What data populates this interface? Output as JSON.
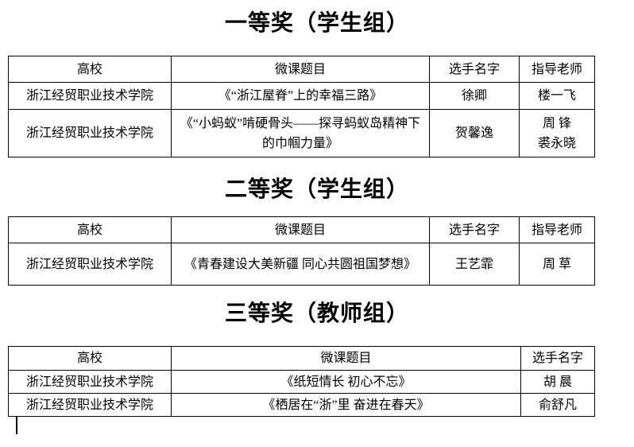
{
  "doc": {
    "sections": [
      {
        "title": "一等奖（学生组）",
        "headers": [
          "高校",
          "微课题目",
          "选手名字",
          "指导老师"
        ],
        "rows": [
          {
            "school": "浙江经贸职业技术学院",
            "topic": "《“浙江屋脊”上的幸福三路》",
            "contestant": "徐卿",
            "advisor": "楼一飞"
          },
          {
            "school": "浙江经贸职业技术学院",
            "topic": "《“小蚂蚁”啃硬骨头——探寻蚂蚁岛精神下的巾帼力量》",
            "contestant": "贺馨逸",
            "advisor": "周 锋\n裘永晓"
          }
        ]
      },
      {
        "title": "二等奖（学生组）",
        "headers": [
          "高校",
          "微课题目",
          "选手名字",
          "指导老师"
        ],
        "rows": [
          {
            "school": "浙江经贸职业技术学院",
            "topic": "《青春建设大美新疆 同心共圆祖国梦想》",
            "contestant": "王艺霏",
            "advisor": "周 草"
          }
        ]
      },
      {
        "title": "三等奖（教师组）",
        "headers": [
          "高校",
          "微课题目",
          "选手名字"
        ],
        "rows": [
          {
            "school": "浙江经贸职业技术学院",
            "topic": "《纸短情长 初心不忘》",
            "contestant": "胡 晨"
          },
          {
            "school": "浙江经贸职业技术学院",
            "topic": "《栖居在“浙”里 奋进在春天》",
            "contestant": "俞舒凡"
          }
        ]
      }
    ]
  }
}
